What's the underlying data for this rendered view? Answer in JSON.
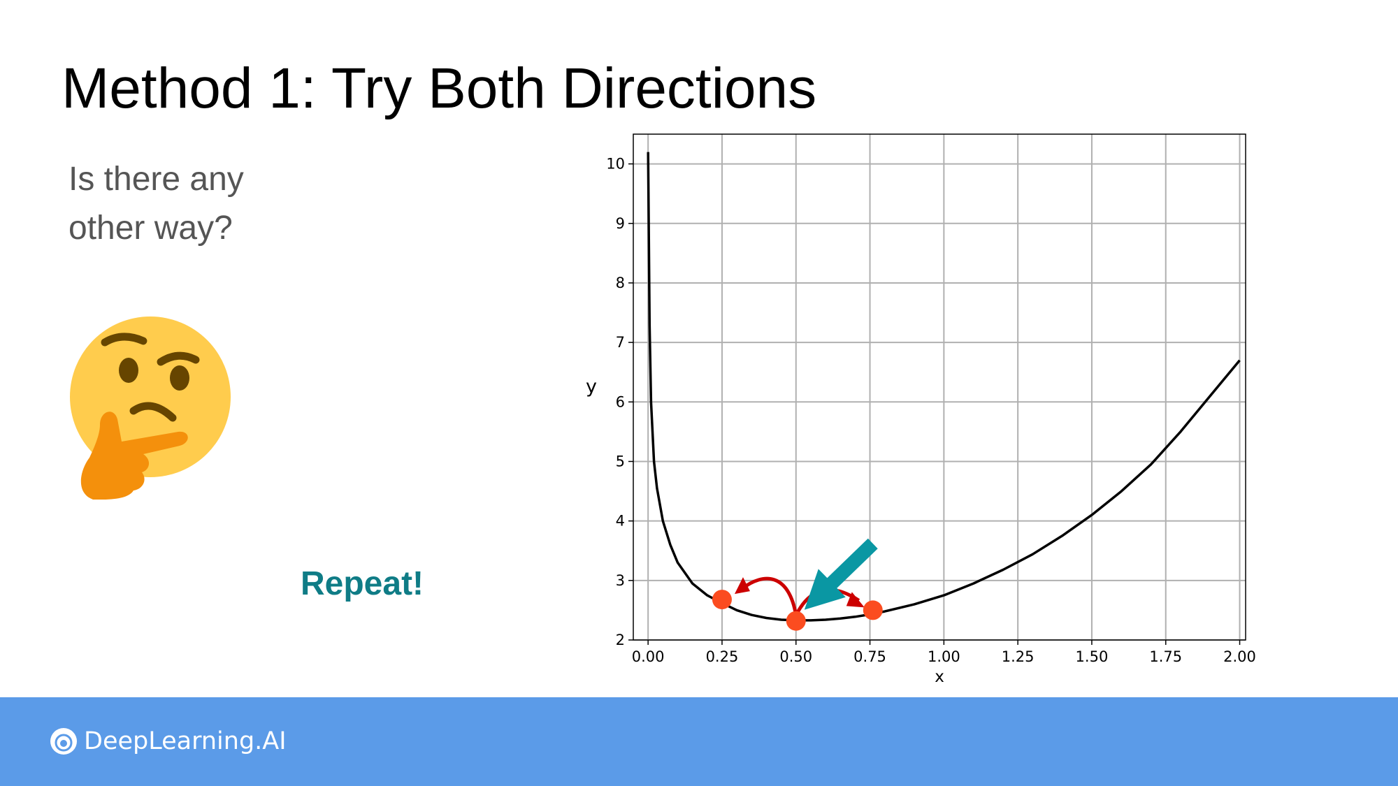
{
  "slide": {
    "title": "Method 1: Try Both Directions",
    "question_line1": "Is there any",
    "question_line2": "other way?",
    "repeat_label": "Repeat!",
    "repeat_color": "#0f7c86",
    "emoji_icon": "thinking-face-icon"
  },
  "footer": {
    "brand": "DeepLearning.AI",
    "color": "#5b9be8",
    "logo_icon": "deeplearning-logo-icon"
  },
  "chart_data": {
    "type": "line",
    "title": "",
    "xlabel": "x",
    "ylabel": "y",
    "xlim": [
      -0.05,
      2.02
    ],
    "ylim": [
      2,
      10.5
    ],
    "xticks": [
      "0.00",
      "0.25",
      "0.50",
      "0.75",
      "1.00",
      "1.25",
      "1.50",
      "1.75",
      "2.00"
    ],
    "yticks": [
      "2",
      "3",
      "4",
      "5",
      "6",
      "7",
      "8",
      "9",
      "10"
    ],
    "grid": true,
    "line_color": "#000000",
    "series": [
      {
        "x": [
          0.0,
          0.005,
          0.01,
          0.02,
          0.03,
          0.05,
          0.075,
          0.1,
          0.15,
          0.2,
          0.25,
          0.3,
          0.35,
          0.4,
          0.45,
          0.5,
          0.55,
          0.6,
          0.65,
          0.7,
          0.75,
          0.8,
          0.9,
          1.0,
          1.1,
          1.2,
          1.3,
          1.4,
          1.5,
          1.6,
          1.7,
          1.8,
          1.9,
          2.0
        ],
        "values": [
          10.2,
          7.3,
          6.0,
          5.0,
          4.55,
          4.0,
          3.6,
          3.3,
          2.95,
          2.75,
          2.62,
          2.5,
          2.42,
          2.37,
          2.34,
          2.33,
          2.33,
          2.34,
          2.36,
          2.39,
          2.43,
          2.48,
          2.6,
          2.75,
          2.95,
          3.18,
          3.44,
          3.75,
          4.1,
          4.5,
          4.95,
          5.5,
          6.1,
          6.7
        ]
      }
    ],
    "points": [
      {
        "x": 0.25,
        "y": 2.68
      },
      {
        "x": 0.5,
        "y": 2.32
      },
      {
        "x": 0.76,
        "y": 2.5
      }
    ],
    "point_color": "#fb4c20",
    "arrow_color": "#cc0000",
    "pointer_color": "#0a97a3"
  }
}
